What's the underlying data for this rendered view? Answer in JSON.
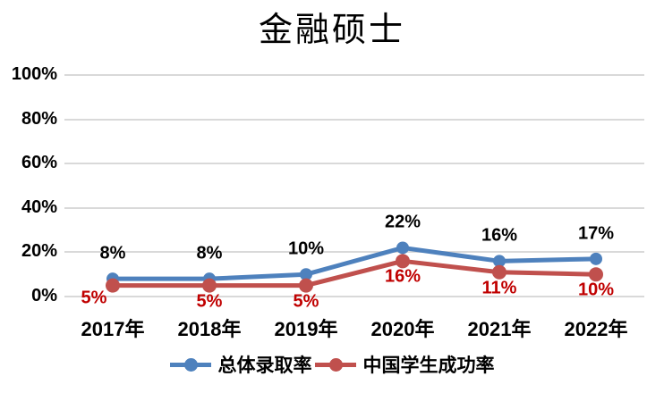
{
  "chart_data": {
    "type": "line",
    "title": "金融硕士",
    "categories": [
      "2017年",
      "2018年",
      "2019年",
      "2020年",
      "2021年",
      "2022年"
    ],
    "series": [
      {
        "name": "总体录取率",
        "values": [
          8,
          8,
          10,
          22,
          16,
          17
        ],
        "data_labels": [
          "8%",
          "8%",
          "10%",
          "22%",
          "16%",
          "17%"
        ],
        "color": "#4E81BD",
        "label_color": "#000000",
        "label_position": "above"
      },
      {
        "name": "中国学生成功率",
        "values": [
          5,
          5,
          5,
          16,
          11,
          10
        ],
        "data_labels": [
          "5%",
          "5%",
          "5%",
          "16%",
          "11%",
          "10%"
        ],
        "color": "#C0504D",
        "label_color": "#C00000",
        "label_position": "below"
      }
    ],
    "xlabel": "",
    "ylabel": "",
    "ylim": [
      0,
      100
    ],
    "yticks": {
      "labels": [
        "0%",
        "20%",
        "40%",
        "60%",
        "80%",
        "100%"
      ],
      "values": [
        0,
        20,
        40,
        60,
        80,
        100
      ]
    },
    "grid": true,
    "gridline_color": "#D9D9D9",
    "legend_position": "bottom",
    "marker": "circle"
  }
}
